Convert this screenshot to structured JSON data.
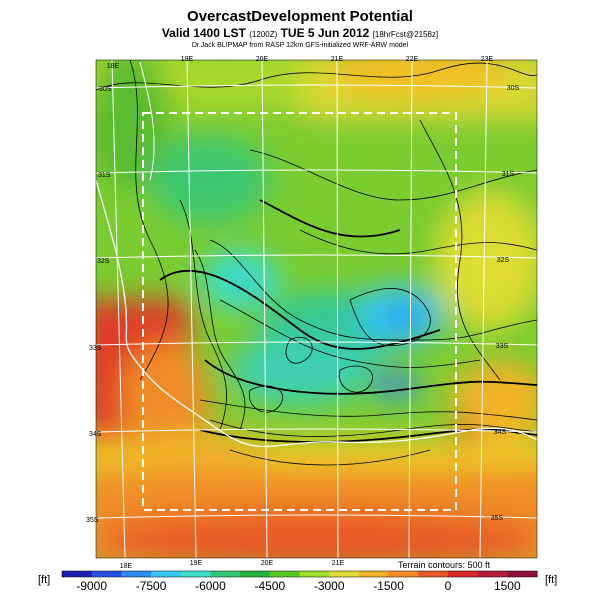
{
  "title": "OvercastDevelopment Potential",
  "subtitle_main": "Valid 1400 LST",
  "subtitle_utc": "(1200Z)",
  "subtitle_date": "TUE 5 Jun 2012",
  "subtitle_fcst": "[18hrFcst@2158z]",
  "credit": "Dr.Jack BLIPMAP from RASP 12km GFS-initialized WRF-ARW model",
  "top_lon_labels": [
    "18E",
    "19E",
    "20E",
    "21E",
    "22E",
    "23E"
  ],
  "bottom_lon_labels": [
    "18E",
    "19E",
    "20E",
    "21E"
  ],
  "right_lat_labels": [
    "30S",
    "31S",
    "32S",
    "33S",
    "34S",
    "35S"
  ],
  "left_lat_labels": [
    "30S",
    "31S",
    "32S",
    "33S",
    "34S",
    "35S"
  ],
  "terrain_note": "Terrain contours: 500 ft",
  "unit_label": "[ft]",
  "colorbar": {
    "tick_labels": [
      "-9000",
      "-7500",
      "-6000",
      "-4500",
      "-3000",
      "-1500",
      "0",
      "1500"
    ],
    "colors": [
      "#1e1eb4",
      "#2850e6",
      "#2d8cf0",
      "#32c8f0",
      "#3cdcc8",
      "#32c878",
      "#28b43c",
      "#5ac828",
      "#a0dc28",
      "#dcdc32",
      "#f0b428",
      "#f08c28",
      "#e65a28",
      "#dc2828",
      "#b41e3c",
      "#8c143c"
    ]
  }
}
